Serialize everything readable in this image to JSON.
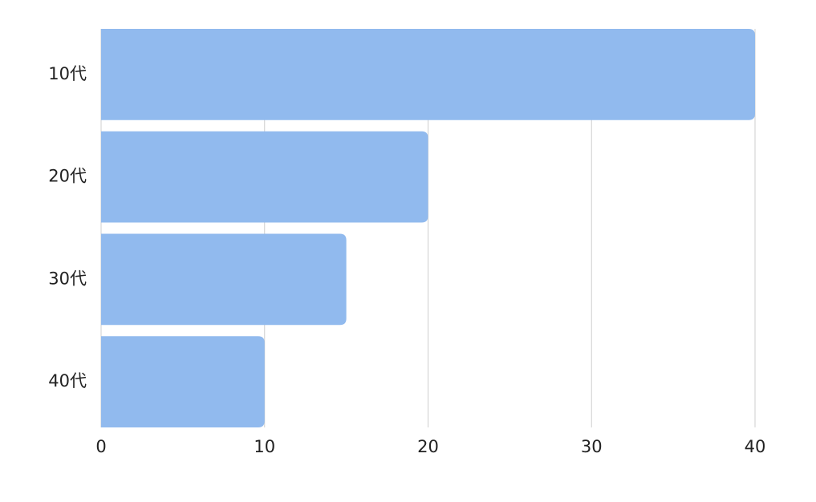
{
  "chart_data": {
    "type": "bar",
    "orientation": "horizontal",
    "categories": [
      "10代",
      "20代",
      "30代",
      "40代"
    ],
    "values": [
      40,
      20,
      15,
      10
    ],
    "color": "#91baee",
    "xlim": [
      0,
      40
    ],
    "xticks": [
      0,
      10,
      20,
      30,
      40
    ],
    "grid": true
  }
}
